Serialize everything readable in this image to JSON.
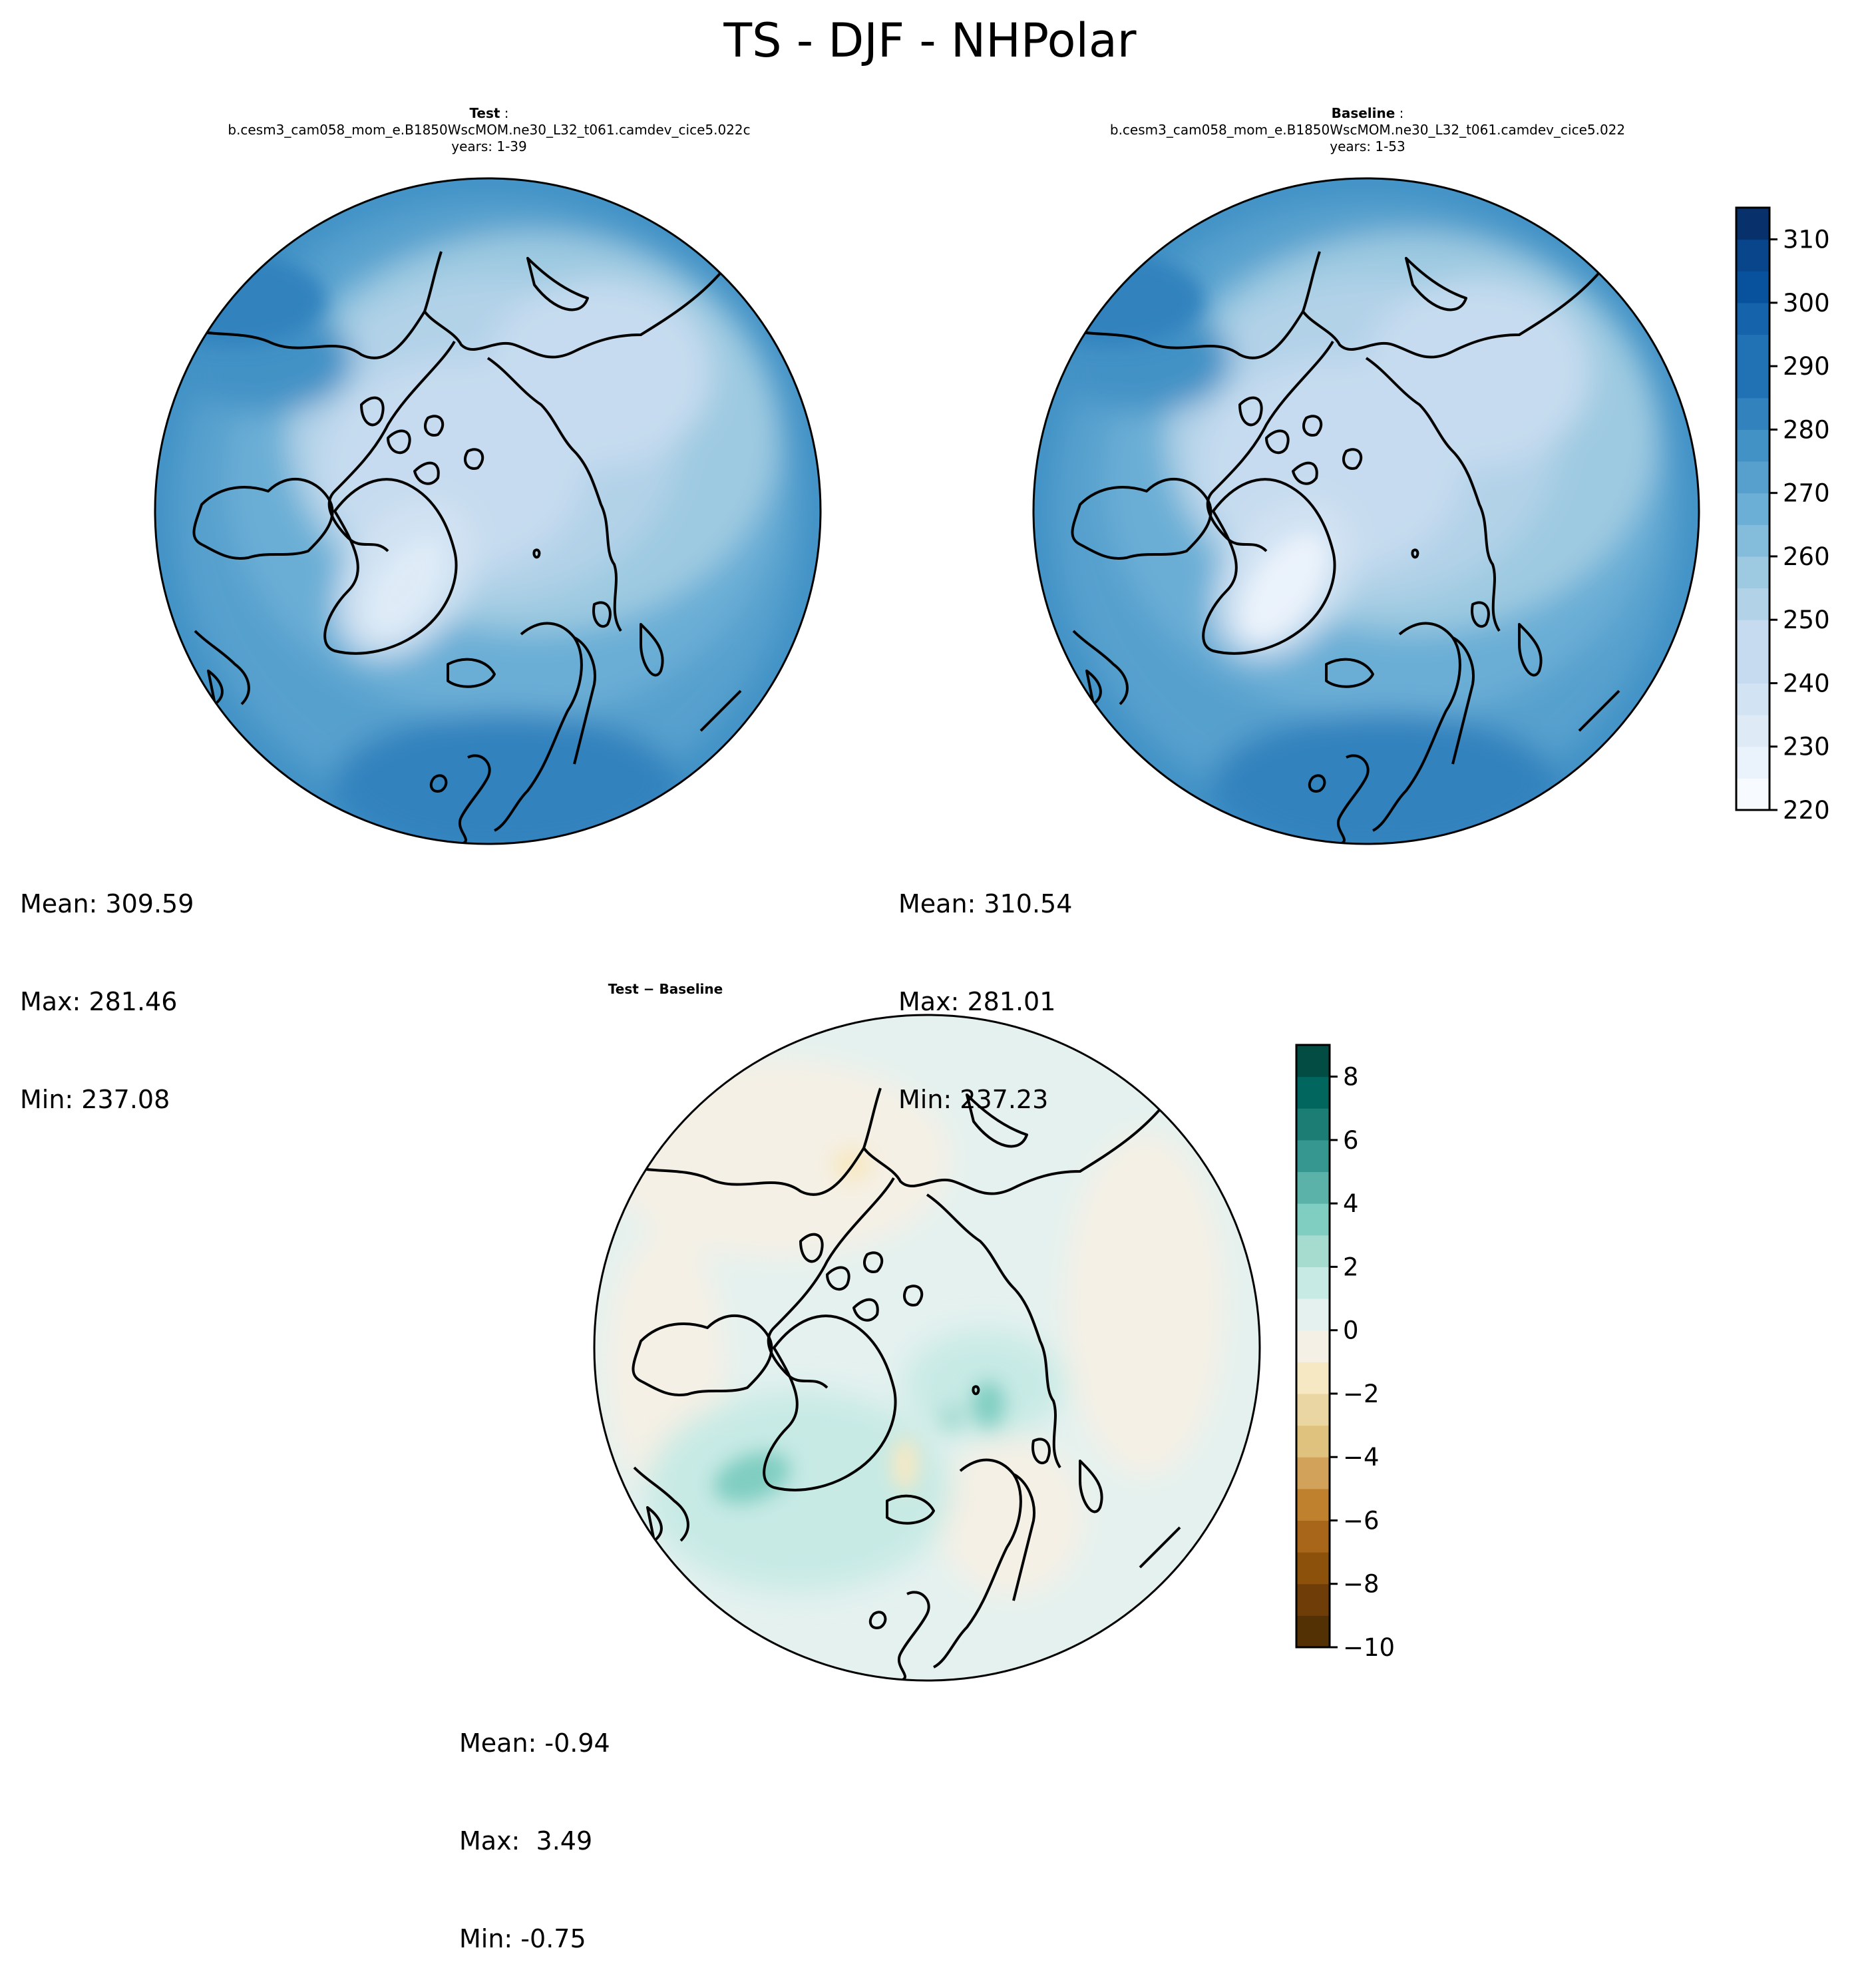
{
  "suptitle": "TS - DJF - NHPolar",
  "panels": {
    "test": {
      "label": "Test",
      "case": "b.cesm3_cam058_mom_e.B1850WscMOM.ne30_L32_t061.camdev_cice5.022c",
      "years": "years: 1-39",
      "mean": "Mean: 309.59",
      "max": "Max: 281.46",
      "min": "Min: 237.08"
    },
    "baseline": {
      "label": "Baseline",
      "case": "b.cesm3_cam058_mom_e.B1850WscMOM.ne30_L32_t061.camdev_cice5.022",
      "years": "years: 1-53",
      "mean": "Mean: 310.54",
      "max": "Max: 281.01",
      "min": "Min: 237.23"
    },
    "diff": {
      "label": "Test − Baseline",
      "mean": "Mean: -0.94",
      "max": "Max:  3.49",
      "min": "Min: -0.75"
    }
  },
  "chart_data": [
    {
      "type": "heatmap",
      "title": "Test",
      "colormap": "Blues",
      "colorbar": {
        "levels": [
          220,
          225,
          230,
          235,
          240,
          245,
          250,
          255,
          260,
          265,
          270,
          275,
          280,
          285,
          290,
          295,
          300,
          305,
          310,
          315
        ],
        "ticks": [
          220,
          230,
          240,
          250,
          260,
          270,
          280,
          290,
          300,
          310
        ]
      },
      "stats": {
        "mean": 309.59,
        "max": 281.46,
        "min": 237.08
      }
    },
    {
      "type": "heatmap",
      "title": "Baseline",
      "colormap": "Blues",
      "colorbar": {
        "levels": [
          220,
          225,
          230,
          235,
          240,
          245,
          250,
          255,
          260,
          265,
          270,
          275,
          280,
          285,
          290,
          295,
          300,
          305,
          310,
          315
        ],
        "ticks": [
          220,
          230,
          240,
          250,
          260,
          270,
          280,
          290,
          300,
          310
        ]
      },
      "stats": {
        "mean": 310.54,
        "max": 281.01,
        "min": 237.23
      }
    },
    {
      "type": "heatmap",
      "title": "Test − Baseline",
      "colormap": "BrBG",
      "colorbar": {
        "levels": [
          -10,
          -9,
          -8,
          -7,
          -6,
          -5,
          -4,
          -3,
          -2,
          -1,
          0,
          1,
          2,
          3,
          4,
          5,
          6,
          7,
          8,
          9
        ],
        "ticks": [
          -10,
          -8,
          -6,
          -4,
          -2,
          0,
          2,
          4,
          6,
          8
        ]
      },
      "stats": {
        "mean": -0.94,
        "max": 3.49,
        "min": -0.75
      }
    }
  ],
  "colors": {
    "blues": [
      "#f7fbff",
      "#eaf2fb",
      "#deebf7",
      "#d2e3f3",
      "#c6dbef",
      "#b2d2e8",
      "#9ecae1",
      "#84bcdb",
      "#6baed6",
      "#57a0ce",
      "#4292c6",
      "#3282be",
      "#2171b5",
      "#1563aa",
      "#08519c",
      "#08458a",
      "#08306b"
    ],
    "brbg": [
      "#543005",
      "#6f3e08",
      "#8c510a",
      "#a8661a",
      "#bf812d",
      "#d3a25a",
      "#dfc27d",
      "#ead6a2",
      "#f6e8c3",
      "#f5f0e5",
      "#e4f1ef",
      "#c7eae5",
      "#a6dbd0",
      "#80cdc1",
      "#5ab2a8",
      "#35978f",
      "#1c7d74",
      "#01665e",
      "#024c44"
    ]
  }
}
